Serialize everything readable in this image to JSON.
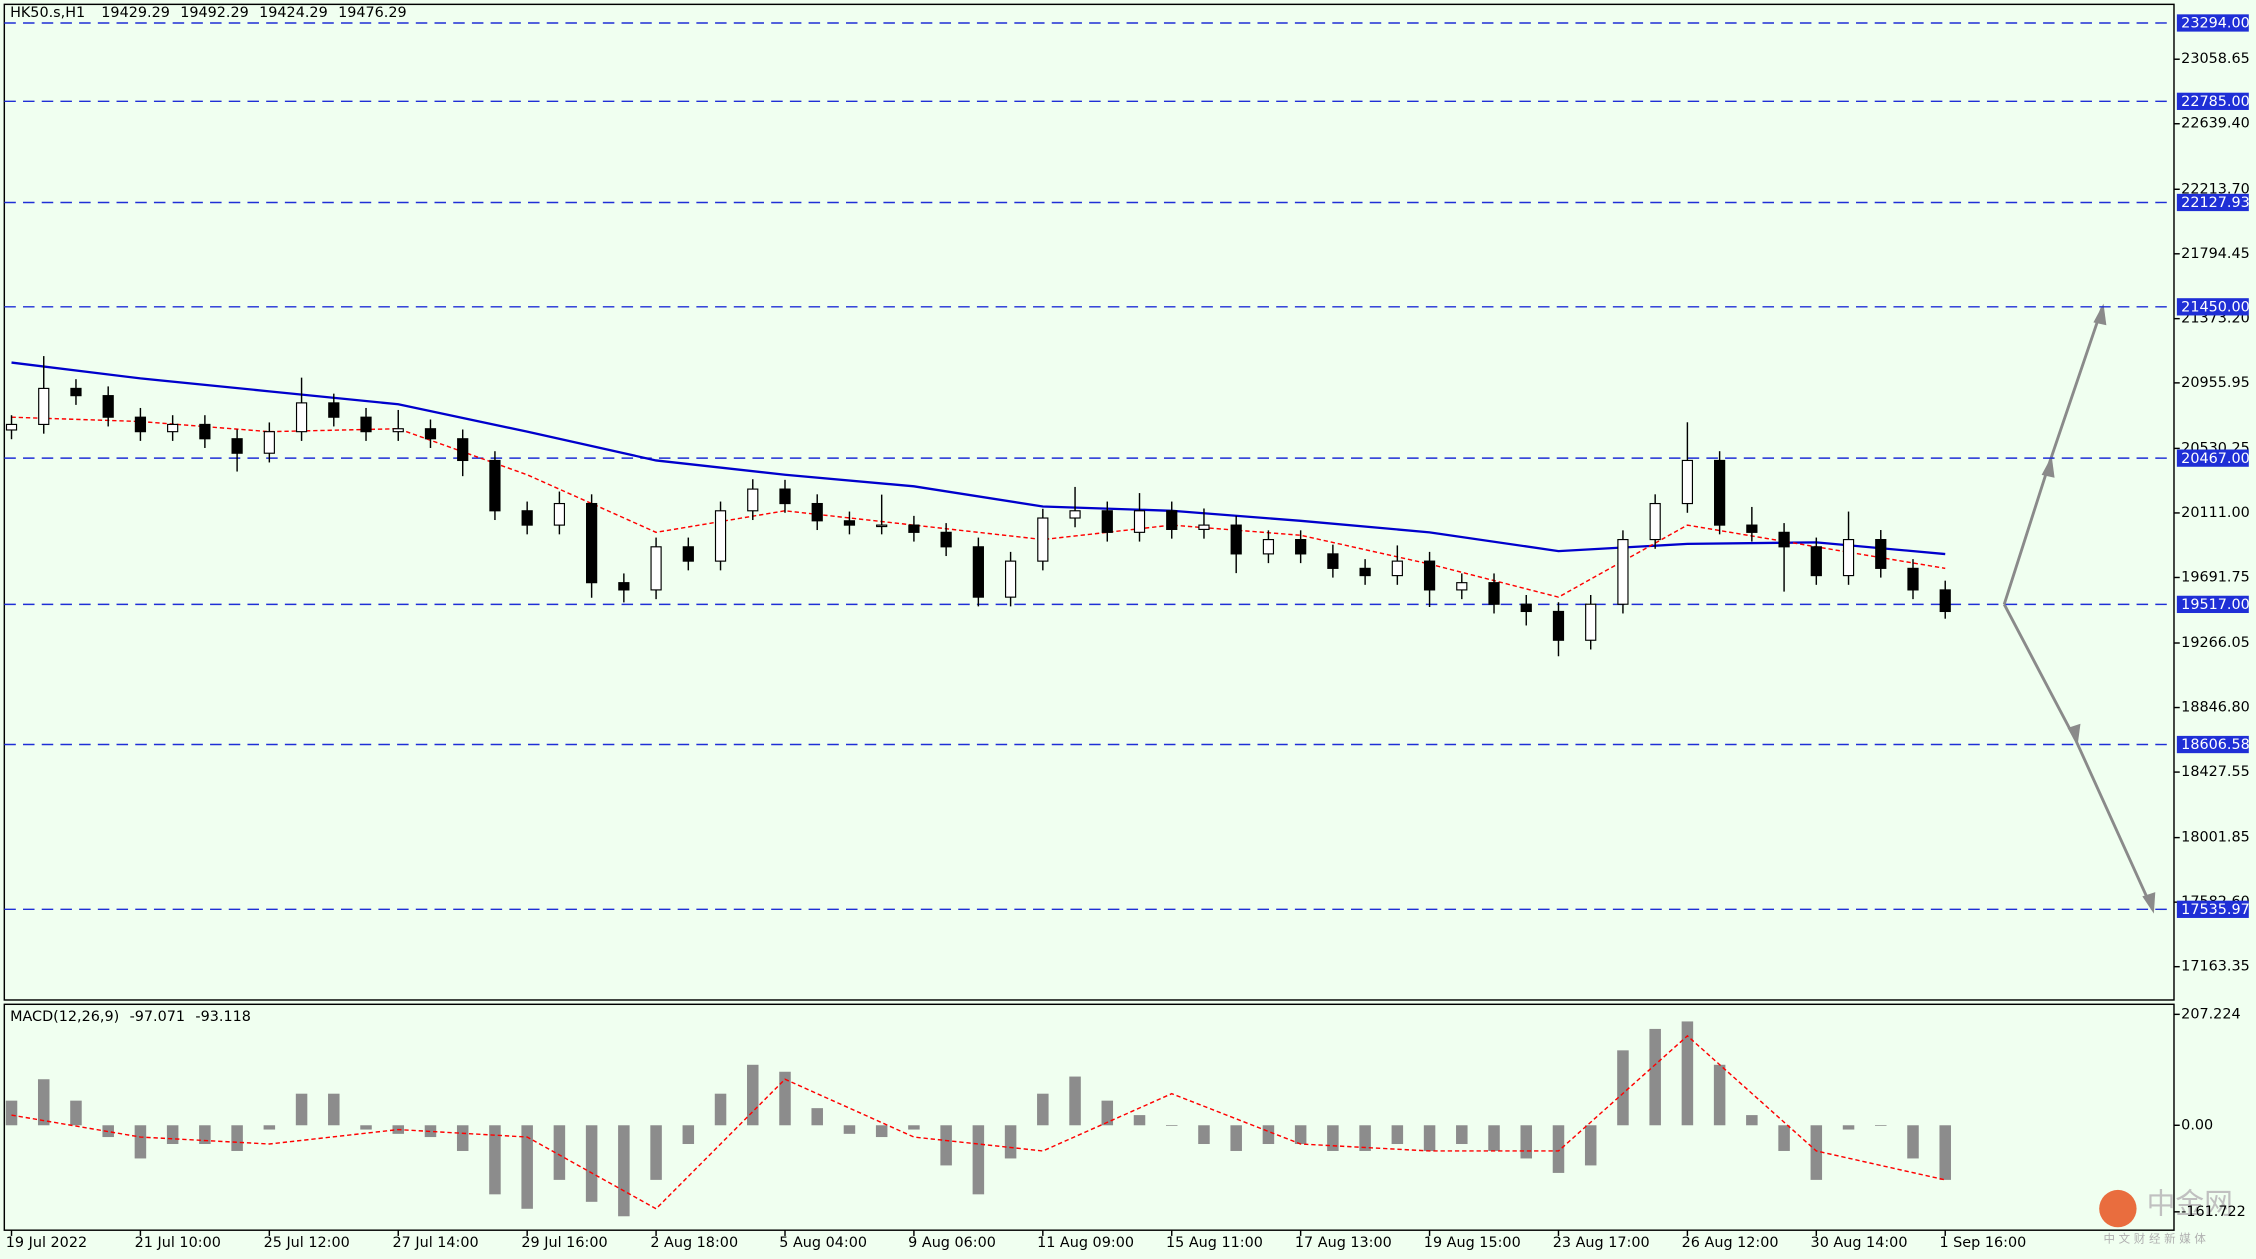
{
  "chart_data": [
    {
      "type": "candlestick",
      "symbol": "HK50.s,H1",
      "ohlc": [
        19429.29,
        19492.29,
        19424.29,
        19476.29
      ],
      "categories": [
        "19 Jul 2022",
        null,
        null,
        null,
        "21 Jul 10:00",
        null,
        null,
        null,
        "25 Jul 12:00",
        null,
        null,
        null,
        "27 Jul 14:00",
        null,
        null,
        null,
        "29 Jul 16:00",
        null,
        null,
        null,
        "2 Aug 18:00",
        null,
        null,
        null,
        "5 Aug 04:00",
        null,
        null,
        null,
        "9 Aug 06:00",
        null,
        null,
        null,
        "11 Aug 09:00",
        null,
        null,
        null,
        "15 Aug 11:00",
        null,
        null,
        null,
        "17 Aug 13:00",
        null,
        null,
        null,
        "19 Aug 15:00",
        null,
        null,
        null,
        "23 Aug 17:00",
        null,
        null,
        null,
        "26 Aug 12:00",
        null,
        null,
        null,
        "30 Aug 14:00",
        null,
        null,
        null,
        "1 Sep 16:00"
      ],
      "open": [
        20650,
        20686,
        20920,
        20873,
        20733,
        20639,
        20686,
        20593,
        20499,
        20639,
        20826,
        20733,
        20639,
        20658,
        20593,
        20452,
        20125,
        20032,
        20172,
        19658,
        19611,
        19891,
        19798,
        20125,
        20266,
        20172,
        20060,
        20032,
        20032,
        19985,
        19891,
        19564,
        19798,
        20078,
        20125,
        19985,
        20125,
        20004,
        20032,
        19845,
        19938,
        19845,
        19751,
        19704,
        19798,
        19611,
        19658,
        19518,
        19471,
        19284,
        19518,
        19938,
        20172,
        20452,
        20032,
        19985,
        19891,
        19704,
        19938,
        19751,
        19611
      ],
      "high": [
        20746,
        21130,
        20980,
        20933,
        20793,
        20746,
        20746,
        20653,
        20699,
        20990,
        20886,
        20793,
        20780,
        20718,
        20653,
        20512,
        20185,
        20250,
        20232,
        19718,
        19951,
        19951,
        20185,
        20330,
        20326,
        20232,
        20120,
        20230,
        20092,
        20045,
        19951,
        19858,
        20138,
        20280,
        20185,
        20240,
        20185,
        20140,
        20092,
        19998,
        19998,
        19905,
        19811,
        19900,
        19858,
        19718,
        19718,
        19578,
        19531,
        19578,
        19998,
        20232,
        20700,
        20512,
        20150,
        20045,
        19951,
        20120,
        20000,
        19811,
        19671
      ],
      "low": [
        20590,
        20626,
        20813,
        20673,
        20579,
        20579,
        20533,
        20380,
        20439,
        20579,
        20673,
        20579,
        20579,
        20533,
        20350,
        20065,
        19972,
        19972,
        19560,
        19530,
        19551,
        19738,
        19738,
        20065,
        20112,
        20000,
        19972,
        19972,
        19925,
        19831,
        19504,
        19504,
        19738,
        20018,
        19925,
        19925,
        19944,
        19944,
        19720,
        19785,
        19785,
        19691,
        19644,
        19644,
        19500,
        19551,
        19458,
        19380,
        19180,
        19224,
        19458,
        19878,
        20112,
        19972,
        19925,
        19600,
        19644,
        19644,
        19691,
        19551,
        19424
      ],
      "close": [
        20686,
        20920,
        20873,
        20733,
        20639,
        20686,
        20593,
        20499,
        20639,
        20826,
        20733,
        20639,
        20658,
        20593,
        20452,
        20125,
        20032,
        20172,
        19658,
        19611,
        19891,
        19798,
        20125,
        20266,
        20172,
        20060,
        20032,
        20032,
        19985,
        19891,
        19564,
        19798,
        20078,
        20125,
        19985,
        20125,
        20004,
        20032,
        19845,
        19938,
        19845,
        19751,
        19704,
        19798,
        19611,
        19658,
        19518,
        19471,
        19284,
        19518,
        19938,
        20172,
        20452,
        20032,
        19985,
        19891,
        19704,
        19938,
        19751,
        19611,
        19471
      ],
      "bull_color": "#ffffff",
      "bear_color": "#000000",
      "lines": [
        {
          "x": [
            0,
            4,
            8,
            12,
            16,
            20,
            24,
            28,
            32,
            36,
            40,
            44,
            48,
            52,
            56,
            60
          ],
          "values": [
            21088,
            20985,
            20901,
            20817,
            20639,
            20452,
            20359,
            20284,
            20153,
            20125,
            20060,
            19985,
            19863,
            19910,
            19920,
            19844
          ],
          "color": "#0000cc",
          "dashed": false
        },
        {
          "x": [
            0,
            4,
            8,
            12,
            16,
            20,
            24,
            28,
            32,
            36,
            40,
            44,
            48,
            52,
            56,
            60
          ],
          "values": [
            20733,
            20705,
            20639,
            20658,
            20359,
            19985,
            20125,
            20032,
            19938,
            20032,
            19966,
            19779,
            19564,
            20032,
            19891,
            19751
          ],
          "color": "#ff0000",
          "dashed": true
        }
      ],
      "levels": [
        {
          "value": 23294,
          "label": "23294.00"
        },
        {
          "value": 22785,
          "label": "22785.00"
        },
        22127.93,
        {
          "value": 21450,
          "label": "21450.00"
        },
        {
          "value": 20467,
          "label": "20467.00"
        },
        {
          "value": 19517,
          "label": "19517.00"
        },
        18606.58,
        17535.97
      ],
      "level_color": "#1f2fd6",
      "ylim": [
        16947,
        23415
      ],
      "yticks": [
        23058.65,
        {
          "value": 22639.4,
          "label": "22639.40"
        },
        {
          "value": 22213.7,
          "label": "22213.70"
        },
        21794.45,
        {
          "value": 21373.2,
          "label": "21373.20"
        },
        20955.95,
        20530.25,
        {
          "value": 20111,
          "label": "20111.00"
        },
        19691.75,
        19266.05,
        {
          "value": 18846.8,
          "label": "18846.80"
        },
        18427.55,
        18001.85,
        {
          "value": 17582.6,
          "label": "17582.60"
        },
        17163.35
      ]
    },
    {
      "type": "macd",
      "title": "MACD(12,26,9)",
      "title_values": [
        -97.071,
        -93.118
      ],
      "values": [
        46,
        86,
        46,
        -22,
        -62,
        -35,
        -35,
        -48,
        -8,
        59,
        59,
        -8,
        -16,
        -22,
        -48,
        -129,
        -156,
        -102,
        -143,
        -170,
        -102,
        -35,
        59,
        113,
        100,
        32,
        -16,
        -22,
        -8,
        -75,
        -129,
        -62,
        59,
        91,
        46,
        19,
        0,
        -35,
        -48,
        -35,
        -35,
        -48,
        -48,
        -35,
        -48,
        -35,
        -48,
        -62,
        -89,
        -75,
        140,
        180,
        194,
        113,
        19,
        -48,
        -102,
        -8,
        0,
        -62,
        -102
      ],
      "color": "#8c8c8c",
      "signal": {
        "x": [
          0,
          4,
          8,
          12,
          16,
          20,
          24,
          28,
          32,
          36,
          40,
          44,
          48,
          52,
          56,
          60
        ],
        "values": [
          19,
          -22,
          -35,
          -8,
          -22,
          -156,
          86,
          -22,
          -48,
          59,
          -35,
          -48,
          -48,
          167,
          -48,
          -102
        ],
        "color": "#ff0000"
      },
      "ylim": [
        -196,
        226
      ],
      "yticks": [
        207.224,
        {
          "value": 0,
          "label": "0.00"
        },
        -161.722
      ]
    }
  ],
  "watermark": {
    "title": "中金网",
    "subtitle": "中 文 财 经 新 媒 体"
  }
}
